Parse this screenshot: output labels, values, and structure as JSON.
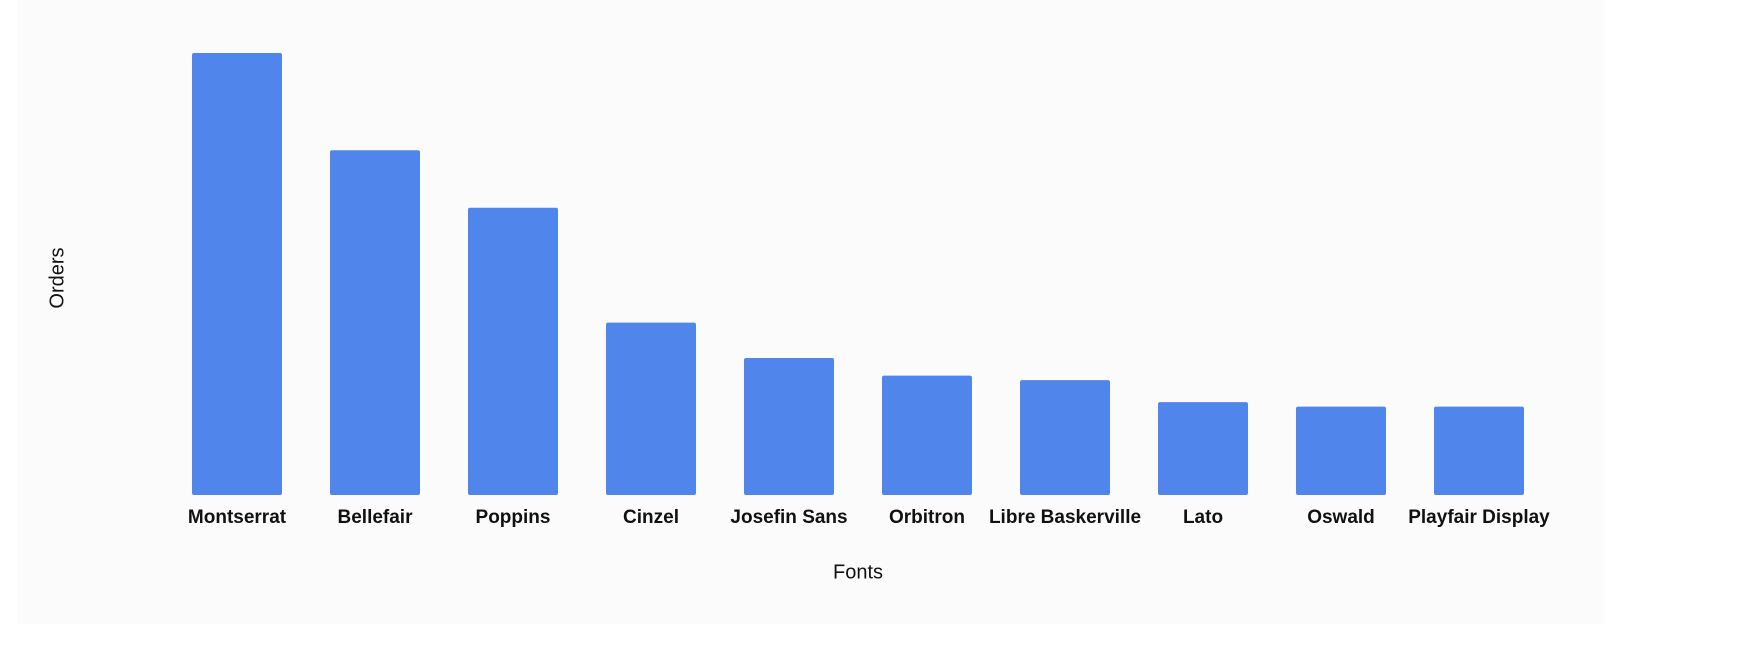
{
  "chart_data": {
    "type": "bar",
    "x_label": "Fonts",
    "y_label": "Orders",
    "categories": [
      "Montserrat",
      "Bellefair",
      "Poppins",
      "Cinzel",
      "Josefin Sans",
      "Orbitron",
      "Libre Baskerville",
      "Lato",
      "Oswald",
      "Playfair Display"
    ],
    "values": [
      100,
      78,
      65,
      39,
      31,
      27,
      26,
      21,
      20,
      20
    ],
    "color": "#5086ec",
    "ylim": [
      0,
      100
    ]
  }
}
